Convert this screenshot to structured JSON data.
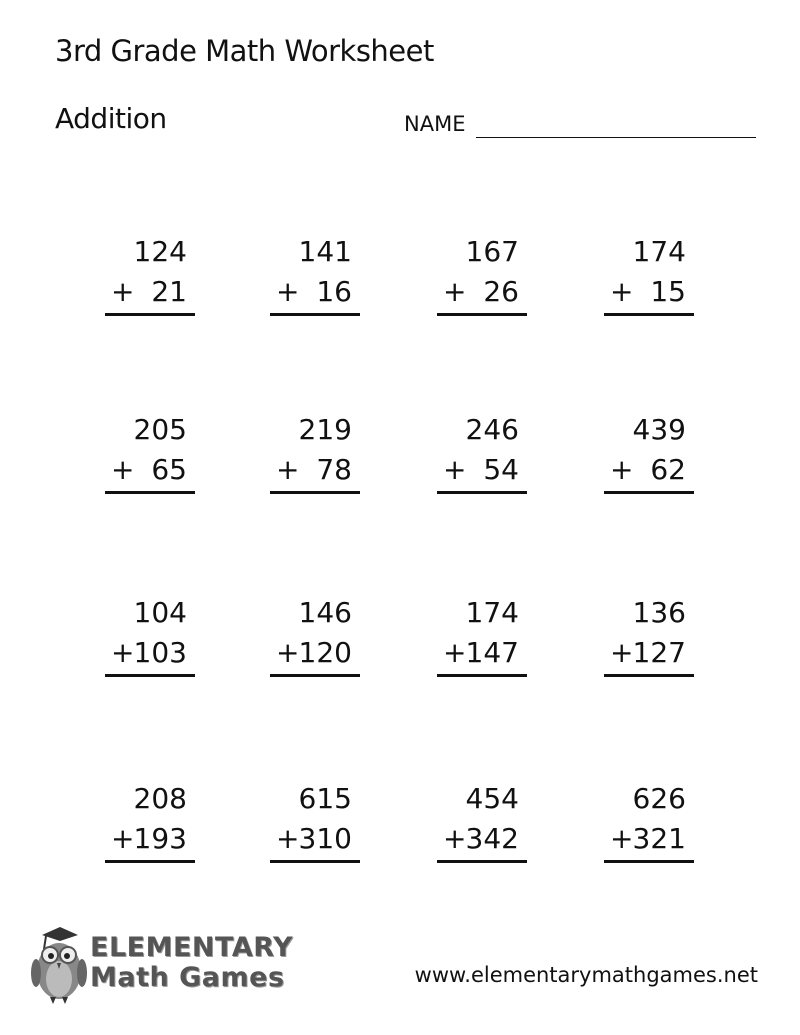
{
  "header": {
    "title": "3rd Grade Math Worksheet",
    "subtitle": "Addition",
    "name_label": "NAME"
  },
  "problems": [
    {
      "top": "124",
      "operator": "+",
      "bottom": "21"
    },
    {
      "top": "141",
      "operator": "+",
      "bottom": "16"
    },
    {
      "top": "167",
      "operator": "+",
      "bottom": "26"
    },
    {
      "top": "174",
      "operator": "+",
      "bottom": "15"
    },
    {
      "top": "205",
      "operator": "+",
      "bottom": "65"
    },
    {
      "top": "219",
      "operator": "+",
      "bottom": "78"
    },
    {
      "top": "246",
      "operator": "+",
      "bottom": "54"
    },
    {
      "top": "439",
      "operator": "+",
      "bottom": "62"
    },
    {
      "top": "104",
      "operator": "+",
      "bottom": "103"
    },
    {
      "top": "146",
      "operator": "+",
      "bottom": "120"
    },
    {
      "top": "174",
      "operator": "+",
      "bottom": "147"
    },
    {
      "top": "136",
      "operator": "+",
      "bottom": "127"
    },
    {
      "top": "208",
      "operator": "+",
      "bottom": "193"
    },
    {
      "top": "615",
      "operator": "+",
      "bottom": "310"
    },
    {
      "top": "454",
      "operator": "+",
      "bottom": "342"
    },
    {
      "top": "626",
      "operator": "+",
      "bottom": "321"
    }
  ],
  "footer": {
    "logo_text": "Elementary Math Games",
    "url": "www.elementarymathgames.net"
  }
}
